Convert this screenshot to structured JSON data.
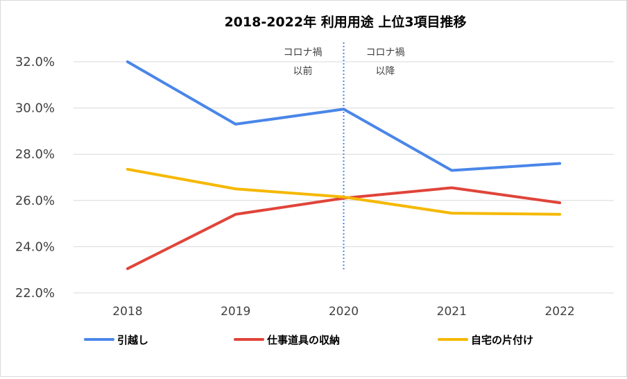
{
  "chart_data": {
    "type": "line",
    "title": "2018-2022年 利用用途 上位3項目推移",
    "categories": [
      "2018",
      "2019",
      "2020",
      "2021",
      "2022"
    ],
    "ylim": [
      22.0,
      32.0
    ],
    "yticks": [
      "22.0%",
      "24.0%",
      "26.0%",
      "28.0%",
      "30.0%",
      "32.0%"
    ],
    "grid": true,
    "legend_position": "bottom",
    "series": [
      {
        "name": "引越し",
        "color": "#4a86e8",
        "values": [
          32.0,
          29.3,
          29.95,
          27.3,
          27.6
        ]
      },
      {
        "name": "仕事道具の収納",
        "color": "#e0443a",
        "values": [
          23.05,
          25.4,
          26.1,
          26.55,
          25.9
        ]
      },
      {
        "name": "自宅の片付け",
        "color": "#f5b800",
        "values": [
          27.35,
          26.5,
          26.15,
          25.45,
          25.4
        ]
      }
    ],
    "divider": {
      "at_category": "2020",
      "color": "#4a86e8",
      "before_label": [
        "コロナ禍",
        "以前"
      ],
      "after_label": [
        "コロナ禍",
        "以降"
      ]
    }
  }
}
